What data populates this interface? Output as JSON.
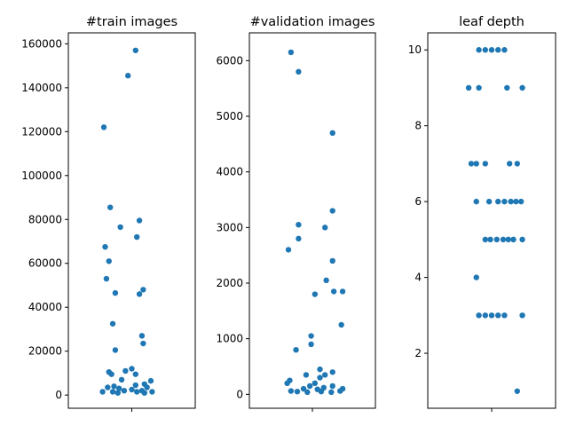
{
  "chart_data": [
    {
      "type": "scatter",
      "title": "#train images",
      "ylim": [
        -6000,
        165000
      ],
      "yticks": [
        0,
        20000,
        40000,
        60000,
        80000,
        100000,
        120000,
        140000,
        160000
      ],
      "xticks": [
        ""
      ],
      "color": "#1f77b4",
      "points": [
        {
          "x": 0.03,
          "y": 157000
        },
        {
          "x": -0.03,
          "y": 145500
        },
        {
          "x": -0.22,
          "y": 122000
        },
        {
          "x": -0.17,
          "y": 85500
        },
        {
          "x": 0.06,
          "y": 79500
        },
        {
          "x": -0.09,
          "y": 76500
        },
        {
          "x": 0.04,
          "y": 72000
        },
        {
          "x": -0.21,
          "y": 67500
        },
        {
          "x": -0.18,
          "y": 61000
        },
        {
          "x": -0.2,
          "y": 53000
        },
        {
          "x": 0.09,
          "y": 48000
        },
        {
          "x": -0.13,
          "y": 46500
        },
        {
          "x": 0.06,
          "y": 46000
        },
        {
          "x": -0.15,
          "y": 32500
        },
        {
          "x": 0.08,
          "y": 27000
        },
        {
          "x": 0.09,
          "y": 23500
        },
        {
          "x": -0.13,
          "y": 20500
        },
        {
          "x": -0.18,
          "y": 10500
        },
        {
          "x": 0.0,
          "y": 12000
        },
        {
          "x": -0.05,
          "y": 11000
        },
        {
          "x": -0.16,
          "y": 9500
        },
        {
          "x": 0.03,
          "y": 9500
        },
        {
          "x": -0.08,
          "y": 7000
        },
        {
          "x": 0.15,
          "y": 6500
        },
        {
          "x": 0.1,
          "y": 5000
        },
        {
          "x": 0.03,
          "y": 4500
        },
        {
          "x": -0.14,
          "y": 4000
        },
        {
          "x": -0.19,
          "y": 3500
        },
        {
          "x": 0.12,
          "y": 3500
        },
        {
          "x": -0.1,
          "y": 3000
        },
        {
          "x": 0.0,
          "y": 2500
        },
        {
          "x": -0.06,
          "y": 2000
        },
        {
          "x": 0.08,
          "y": 2000
        },
        {
          "x": -0.23,
          "y": 1500
        },
        {
          "x": -0.15,
          "y": 1500
        },
        {
          "x": 0.04,
          "y": 1500
        },
        {
          "x": 0.16,
          "y": 1500
        },
        {
          "x": -0.11,
          "y": 1000
        },
        {
          "x": 0.1,
          "y": 1000
        }
      ]
    },
    {
      "type": "scatter",
      "title": "#validation images",
      "ylim": [
        -250,
        6500
      ],
      "yticks": [
        0,
        1000,
        2000,
        3000,
        4000,
        5000,
        6000
      ],
      "xticks": [
        ""
      ],
      "color": "#1f77b4",
      "points": [
        {
          "x": -0.17,
          "y": 6150
        },
        {
          "x": -0.11,
          "y": 5800
        },
        {
          "x": 0.16,
          "y": 4700
        },
        {
          "x": 0.16,
          "y": 3300
        },
        {
          "x": -0.11,
          "y": 3050
        },
        {
          "x": 0.1,
          "y": 3000
        },
        {
          "x": -0.11,
          "y": 2800
        },
        {
          "x": -0.19,
          "y": 2600
        },
        {
          "x": 0.16,
          "y": 2400
        },
        {
          "x": 0.11,
          "y": 2050
        },
        {
          "x": 0.24,
          "y": 1850
        },
        {
          "x": 0.17,
          "y": 1850
        },
        {
          "x": 0.02,
          "y": 1800
        },
        {
          "x": 0.23,
          "y": 1250
        },
        {
          "x": -0.01,
          "y": 1050
        },
        {
          "x": -0.01,
          "y": 900
        },
        {
          "x": -0.13,
          "y": 800
        },
        {
          "x": 0.06,
          "y": 450
        },
        {
          "x": 0.16,
          "y": 400
        },
        {
          "x": -0.05,
          "y": 350
        },
        {
          "x": 0.1,
          "y": 350
        },
        {
          "x": 0.06,
          "y": 300
        },
        {
          "x": -0.18,
          "y": 250
        },
        {
          "x": -0.2,
          "y": 200
        },
        {
          "x": 0.02,
          "y": 200
        },
        {
          "x": 0.16,
          "y": 150
        },
        {
          "x": -0.02,
          "y": 150
        },
        {
          "x": 0.09,
          "y": 120
        },
        {
          "x": 0.24,
          "y": 100
        },
        {
          "x": -0.07,
          "y": 100
        },
        {
          "x": 0.04,
          "y": 90
        },
        {
          "x": -0.17,
          "y": 60
        },
        {
          "x": 0.22,
          "y": 60
        },
        {
          "x": -0.12,
          "y": 50
        },
        {
          "x": 0.07,
          "y": 50
        },
        {
          "x": 0.15,
          "y": 40
        },
        {
          "x": -0.04,
          "y": 40
        }
      ]
    },
    {
      "type": "scatter",
      "title": "leaf depth",
      "ylim": [
        0.55,
        10.45
      ],
      "yticks": [
        2,
        4,
        6,
        8,
        10
      ],
      "xticks": [
        ""
      ],
      "color": "#1f77b4",
      "points": [
        {
          "x": -0.1,
          "y": 10
        },
        {
          "x": -0.05,
          "y": 10
        },
        {
          "x": 0.0,
          "y": 10
        },
        {
          "x": 0.05,
          "y": 10
        },
        {
          "x": 0.1,
          "y": 10
        },
        {
          "x": -0.18,
          "y": 9
        },
        {
          "x": -0.1,
          "y": 9
        },
        {
          "x": 0.12,
          "y": 9
        },
        {
          "x": 0.24,
          "y": 9
        },
        {
          "x": -0.16,
          "y": 7
        },
        {
          "x": -0.12,
          "y": 7
        },
        {
          "x": -0.05,
          "y": 7
        },
        {
          "x": 0.14,
          "y": 7
        },
        {
          "x": 0.2,
          "y": 7
        },
        {
          "x": -0.12,
          "y": 6
        },
        {
          "x": -0.02,
          "y": 6
        },
        {
          "x": 0.05,
          "y": 6
        },
        {
          "x": 0.1,
          "y": 6
        },
        {
          "x": 0.15,
          "y": 6
        },
        {
          "x": 0.19,
          "y": 6
        },
        {
          "x": 0.23,
          "y": 6
        },
        {
          "x": -0.05,
          "y": 5
        },
        {
          "x": -0.01,
          "y": 5
        },
        {
          "x": 0.04,
          "y": 5
        },
        {
          "x": 0.09,
          "y": 5
        },
        {
          "x": 0.13,
          "y": 5
        },
        {
          "x": 0.17,
          "y": 5
        },
        {
          "x": 0.24,
          "y": 5
        },
        {
          "x": -0.12,
          "y": 4
        },
        {
          "x": -0.1,
          "y": 3
        },
        {
          "x": -0.05,
          "y": 3
        },
        {
          "x": 0.0,
          "y": 3
        },
        {
          "x": 0.05,
          "y": 3
        },
        {
          "x": 0.1,
          "y": 3
        },
        {
          "x": 0.24,
          "y": 3
        },
        {
          "x": 0.2,
          "y": 1
        }
      ]
    }
  ]
}
